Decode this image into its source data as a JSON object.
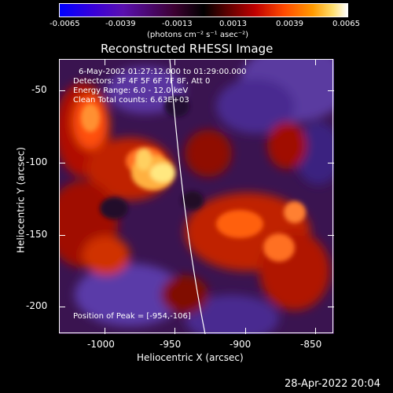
{
  "colorbar": {
    "tick_labels": [
      "-0.0065",
      "-0.0039",
      "-0.0013",
      "0.0013",
      "0.0039",
      "0.0065"
    ],
    "units": "(photons cm⁻² s⁻¹ asec⁻²)"
  },
  "plot": {
    "title": "Reconstructed RHESSI Image",
    "info_lines": [
      "6-May-2002 01:27:12.000 to 01:29:00.000",
      "Detectors: 3F 4F 5F 6F 7F 8F, Att 0",
      "Energy Range: 6.0 - 12.0 keV",
      "Clean    Total counts: 6.63E+03"
    ],
    "peak_label": "Position of Peak = [-954,-106]",
    "x_axis": {
      "label": "Heliocentric X (arcsec)",
      "tick_labels": [
        "-1000",
        "-950",
        "-900",
        "-850"
      ]
    },
    "y_axis": {
      "label": "Heliocentric Y (arcsec)",
      "tick_labels": [
        "-50",
        "-100",
        "-150",
        "-200"
      ]
    }
  },
  "footer": {
    "timestamp": "28-Apr-2022 20:04"
  },
  "colors": {
    "background": "#000000",
    "text": "#ffffff"
  }
}
